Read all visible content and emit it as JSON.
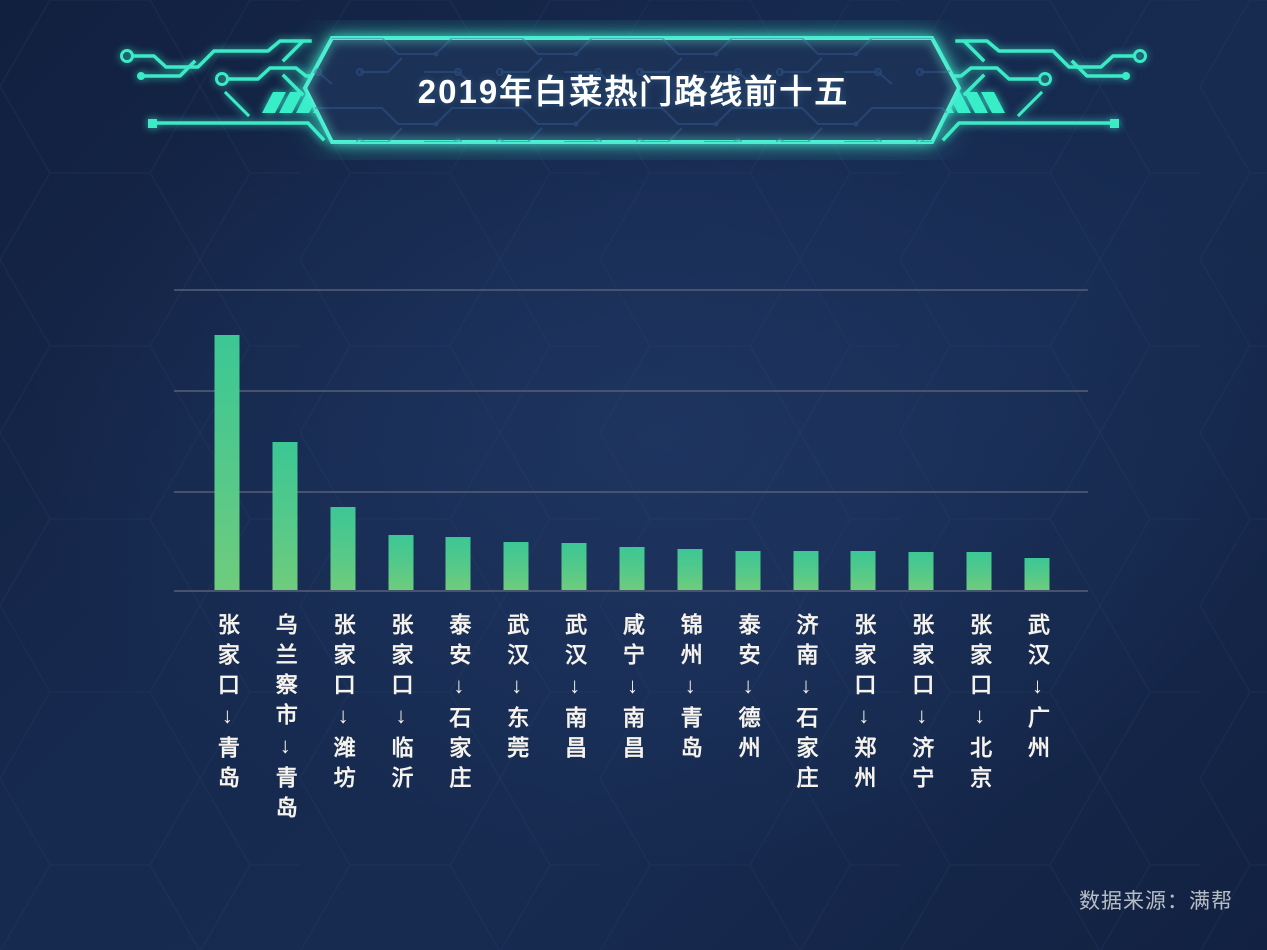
{
  "header": {
    "title": "2019年白菜热门路线前十五"
  },
  "footer": {
    "source_label": "数据来源：满帮"
  },
  "colors": {
    "background": "#16294e",
    "accent_teal": "#3ceac6",
    "bar_top": "#3cc795",
    "bar_bottom": "#6fcc7c",
    "gridline": "#4d5a73",
    "title_text": "#ffffff",
    "label_text": "#f6f3ec",
    "source_text": "#b7bdc5"
  },
  "chart_data": {
    "type": "bar",
    "title": "2019年白菜热门路线前十五",
    "categories": [
      "张家口↓青岛",
      "乌兰察市↓青岛",
      "张家口↓潍坊",
      "张家口↓临沂",
      "泰安↓石家庄",
      "武汉↓东莞",
      "武汉↓南昌",
      "咸宁↓南昌",
      "锦州↓青岛",
      "泰安↓德州",
      "济南↓石家庄",
      "张家口↓郑州",
      "张家口↓济宁",
      "张家口↓北京",
      "武汉↓广州"
    ],
    "values": [
      2.52,
      1.47,
      0.82,
      0.54,
      0.52,
      0.48,
      0.47,
      0.43,
      0.41,
      0.39,
      0.39,
      0.39,
      0.38,
      0.38,
      0.32
    ],
    "value_scale": "relative-gridline-units (no numeric axis labels shown)",
    "xlabel": "",
    "ylabel": "",
    "ylim": [
      0,
      3
    ],
    "gridlines": [
      0,
      1,
      2,
      3
    ],
    "grid": "horizontal-only",
    "legend": "none"
  }
}
